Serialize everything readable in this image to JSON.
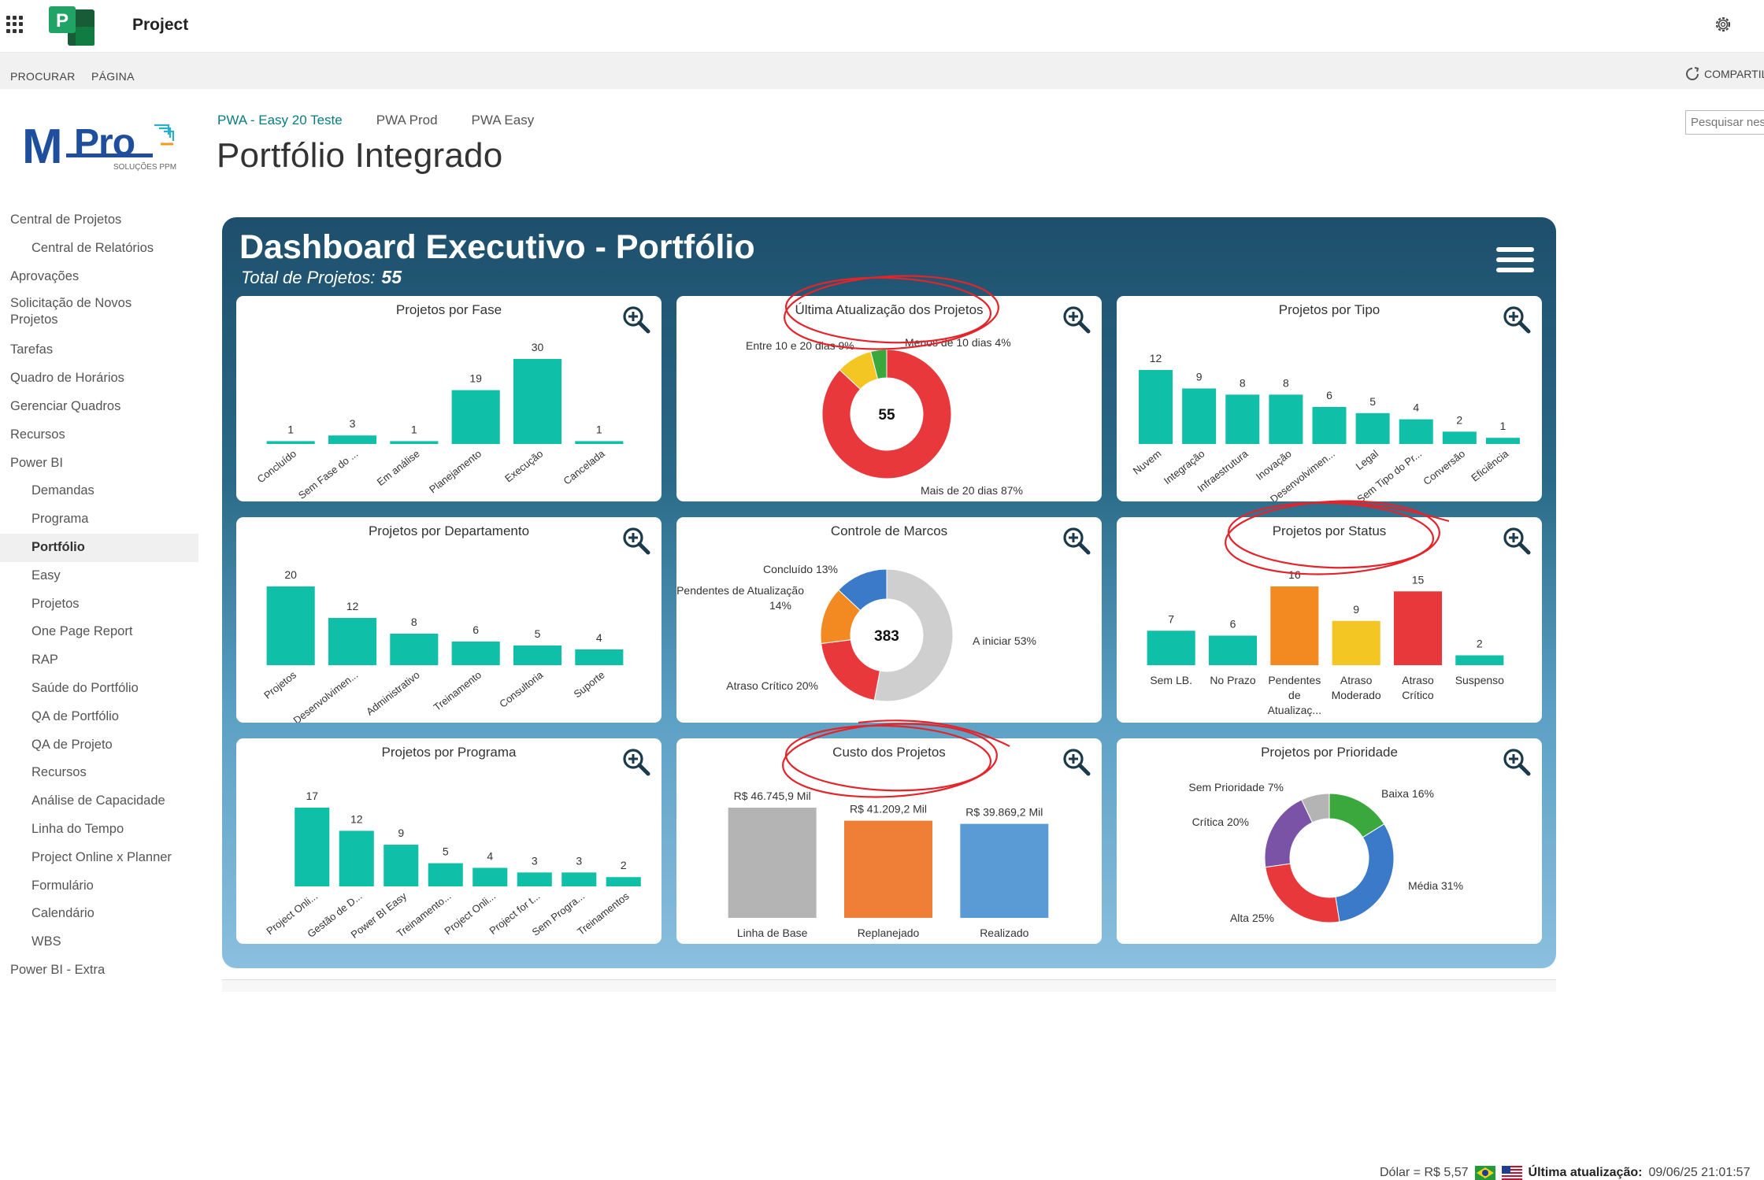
{
  "topbar": {
    "app_title": "Project"
  },
  "ribbon": {
    "browse": "PROCURAR",
    "page": "PÁGINA",
    "share": "COMPARTIL"
  },
  "brand": {
    "logo_text": "MPro",
    "logo_sub": "SOLUÇÕES PPM"
  },
  "breadcrumbs": [
    "PWA - Easy 20 Teste",
    "PWA Prod",
    "PWA Easy"
  ],
  "page_title": "Portfólio Integrado",
  "search": {
    "placeholder": "Pesquisar nes"
  },
  "nav": [
    {
      "label": "Central de Projetos",
      "level": 0
    },
    {
      "label": "Central de Relatórios",
      "level": 1
    },
    {
      "label": "Aprovações",
      "level": 0
    },
    {
      "label": "Solicitação de Novos Projetos",
      "level": 0
    },
    {
      "label": "Tarefas",
      "level": 0
    },
    {
      "label": "Quadro de Horários",
      "level": 0
    },
    {
      "label": "Gerenciar Quadros",
      "level": 0
    },
    {
      "label": "Recursos",
      "level": 0
    },
    {
      "label": "Power BI",
      "level": 0
    },
    {
      "label": "Demandas",
      "level": 1
    },
    {
      "label": "Programa",
      "level": 1
    },
    {
      "label": "Portfólio",
      "level": 1,
      "selected": true
    },
    {
      "label": "Easy",
      "level": 1
    },
    {
      "label": "Projetos",
      "level": 1
    },
    {
      "label": "One Page Report",
      "level": 1
    },
    {
      "label": "RAP",
      "level": 1
    },
    {
      "label": "Saúde do Portfólio",
      "level": 1
    },
    {
      "label": "QA de Portfólio",
      "level": 1
    },
    {
      "label": "QA de Projeto",
      "level": 1
    },
    {
      "label": "Recursos",
      "level": 1
    },
    {
      "label": "Análise de Capacidade",
      "level": 1
    },
    {
      "label": "Linha do Tempo",
      "level": 1
    },
    {
      "label": "Project Online x Planner",
      "level": 1
    },
    {
      "label": "Formulário",
      "level": 1
    },
    {
      "label": "Calendário",
      "level": 1
    },
    {
      "label": "WBS",
      "level": 1
    },
    {
      "label": "Power BI - Extra",
      "level": 0
    }
  ],
  "dashboard": {
    "title": "Dashboard Executivo - Portfólio",
    "total_label": "Total de Projetos:",
    "total_value": "55"
  },
  "footer": {
    "dollar": "Dólar = R$ 5,57",
    "updated_label": "Última atualização:",
    "updated_value": "09/06/25 21:01:57"
  },
  "colors": {
    "teal": "#0fbfa7",
    "red": "#e8383b",
    "yellow": "#f3c623",
    "green": "#3aa83d",
    "blue": "#3a7ac8",
    "orange": "#f38a21",
    "gray": "#cfcfcf",
    "purple": "#7a52a6",
    "annotation": "#e3242b"
  },
  "chart_data": [
    {
      "id": "fase",
      "type": "bar",
      "title": "Projetos por Fase",
      "categories": [
        "Concluído",
        "Sem Fase do ...",
        "Em análise",
        "Planejamento",
        "Execução",
        "Cancelada"
      ],
      "values": [
        1,
        3,
        1,
        19,
        30,
        1
      ]
    },
    {
      "id": "atualizacao",
      "type": "pie",
      "title": "Última Atualização dos Projetos",
      "center": "55",
      "slices": [
        {
          "label": "Mais de 20 dias 87%",
          "value": 87,
          "color": "#e8383b"
        },
        {
          "label": "Entre 10 e 20 dias 9%",
          "value": 9,
          "color": "#f3c623"
        },
        {
          "label": "Menos de 10 dias 4%",
          "value": 4,
          "color": "#3aa83d"
        }
      ]
    },
    {
      "id": "tipo",
      "type": "bar",
      "title": "Projetos por Tipo",
      "categories": [
        "Nuvem",
        "Integração",
        "Infraestrutura",
        "Inovação",
        "Desenvolvimen...",
        "Legal",
        "Sem Tipo do Pr...",
        "Conversão",
        "Eficiência"
      ],
      "values": [
        12,
        9,
        8,
        8,
        6,
        5,
        4,
        2,
        1
      ]
    },
    {
      "id": "departamento",
      "type": "bar",
      "title": "Projetos por Departamento",
      "categories": [
        "Projetos",
        "Desenvolvimen...",
        "Administrativo",
        "Treinamento",
        "Consultoria",
        "Suporte"
      ],
      "values": [
        20,
        12,
        8,
        6,
        5,
        4
      ]
    },
    {
      "id": "marcos",
      "type": "pie",
      "title": "Controle de Marcos",
      "center": "383",
      "slices": [
        {
          "label": "A iniciar 53%",
          "value": 53,
          "color": "#cfcfcf"
        },
        {
          "label": "Atraso Crítico 20%",
          "value": 20,
          "color": "#e8383b"
        },
        {
          "label": "Pendentes de Atualização 14%",
          "value": 14,
          "color": "#f38a21"
        },
        {
          "label": "Concluído 13%",
          "value": 13,
          "color": "#3a7ac8"
        }
      ]
    },
    {
      "id": "status",
      "type": "bar",
      "title": "Projetos por Status",
      "categories": [
        "Sem LB.",
        "No Prazo",
        "Pendentes de Atualizaç...",
        "Atraso Moderado",
        "Atraso Crítico",
        "Suspenso"
      ],
      "values": [
        7,
        6,
        16,
        9,
        15,
        2
      ],
      "colors": [
        "#0fbfa7",
        "#0fbfa7",
        "#f38a21",
        "#f3c623",
        "#e8383b",
        "#0fbfa7"
      ]
    },
    {
      "id": "programa",
      "type": "bar",
      "title": "Projetos por Programa",
      "categories": [
        "Project Onli...",
        "Gestão de D...",
        "Power BI Easy",
        "Treinamento...",
        "Project Onli...",
        "Project for t...",
        "Sem Progra...",
        "Treinamentos"
      ],
      "values": [
        17,
        12,
        9,
        5,
        4,
        3,
        3,
        2
      ]
    },
    {
      "id": "custo",
      "type": "bar",
      "title": "Custo dos Projetos",
      "categories": [
        "Linha de Base",
        "Replanejado",
        "Realizado"
      ],
      "values": [
        46745.9,
        41209.2,
        39869.2
      ],
      "labels": [
        "R$ 46.745,9 Mil",
        "R$ 41.209,2 Mil",
        "R$ 39.869,2 Mil"
      ],
      "colors": [
        "#b4b4b4",
        "#ef7f37",
        "#5b9bd5"
      ]
    },
    {
      "id": "prioridade",
      "type": "pie",
      "title": "Projetos por Prioridade",
      "center": "",
      "slices": [
        {
          "label": "Baixa 16%",
          "value": 16,
          "color": "#3aa83d"
        },
        {
          "label": "Média 31%",
          "value": 31,
          "color": "#3a7ac8"
        },
        {
          "label": "Alta 25%",
          "value": 25,
          "color": "#e8383b"
        },
        {
          "label": "Crítica 20%",
          "value": 20,
          "color": "#7a52a6"
        },
        {
          "label": "Sem Prioridade 7%",
          "value": 7,
          "color": "#b4b4b4"
        }
      ]
    }
  ]
}
